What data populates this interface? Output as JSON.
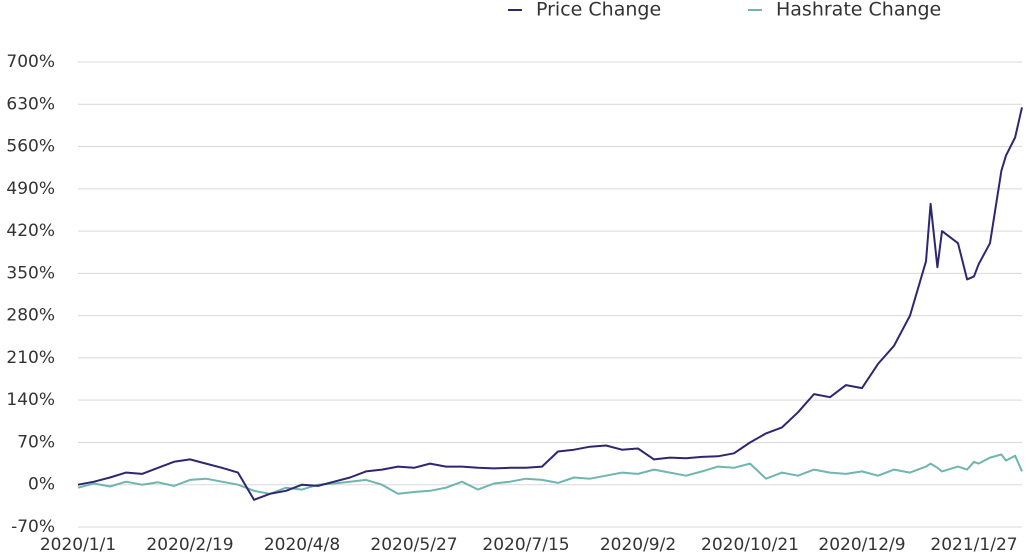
{
  "chart_data": {
    "type": "line",
    "x": [
      "2020/1/1",
      "2020/1/8",
      "2020/1/15",
      "2020/1/22",
      "2020/1/29",
      "2020/2/5",
      "2020/2/12",
      "2020/2/19",
      "2020/2/26",
      "2020/3/4",
      "2020/3/11",
      "2020/3/18",
      "2020/3/25",
      "2020/4/1",
      "2020/4/8",
      "2020/4/15",
      "2020/4/22",
      "2020/4/29",
      "2020/5/6",
      "2020/5/13",
      "2020/5/20",
      "2020/5/27",
      "2020/6/3",
      "2020/6/10",
      "2020/6/17",
      "2020/6/24",
      "2020/7/1",
      "2020/7/8",
      "2020/7/15",
      "2020/7/22",
      "2020/7/29",
      "2020/8/5",
      "2020/8/12",
      "2020/8/19",
      "2020/8/26",
      "2020/9/2",
      "2020/9/9",
      "2020/9/16",
      "2020/9/23",
      "2020/9/30",
      "2020/10/7",
      "2020/10/14",
      "2020/10/21",
      "2020/10/28",
      "2020/11/4",
      "2020/11/11",
      "2020/11/18",
      "2020/11/25",
      "2020/12/2",
      "2020/12/9",
      "2020/12/16",
      "2020/12/23",
      "2020/12/30",
      "2021/1/6",
      "2021/1/8",
      "2021/1/11",
      "2021/1/13",
      "2021/1/20",
      "2021/1/24",
      "2021/1/27",
      "2021/1/29",
      "2021/2/3",
      "2021/2/8",
      "2021/2/10",
      "2021/2/14",
      "2021/2/17"
    ],
    "series": [
      {
        "name": "Price Change",
        "color": "#2e2770",
        "values": [
          0,
          5,
          12,
          20,
          18,
          28,
          38,
          42,
          35,
          28,
          20,
          -25,
          -15,
          -10,
          0,
          -2,
          5,
          12,
          22,
          25,
          30,
          28,
          35,
          30,
          30,
          28,
          27,
          28,
          28,
          30,
          55,
          58,
          63,
          65,
          58,
          60,
          42,
          45,
          44,
          46,
          47,
          52,
          70,
          85,
          95,
          120,
          150,
          145,
          165,
          160,
          200,
          230,
          280,
          370,
          465,
          360,
          420,
          400,
          340,
          345,
          365,
          400,
          520,
          545,
          575,
          625
        ]
      },
      {
        "name": "Hashrate Change",
        "color": "#6fb5b0",
        "values": [
          -5,
          2,
          -3,
          5,
          0,
          4,
          -2,
          8,
          10,
          5,
          0,
          -10,
          -15,
          -5,
          -8,
          0,
          2,
          5,
          8,
          0,
          -15,
          -12,
          -10,
          -5,
          5,
          -8,
          2,
          5,
          10,
          8,
          3,
          12,
          10,
          15,
          20,
          18,
          25,
          20,
          15,
          22,
          30,
          28,
          35,
          10,
          20,
          15,
          25,
          20,
          18,
          22,
          15,
          25,
          20,
          30,
          35,
          28,
          22,
          30,
          25,
          38,
          35,
          45,
          50,
          40,
          48,
          22
        ]
      }
    ],
    "xlim": [
      "2020/1/1",
      "2021/2/17"
    ],
    "xticks": [
      "2020/1/1",
      "2020/2/19",
      "2020/4/8",
      "2020/5/27",
      "2020/7/15",
      "2020/9/2",
      "2020/10/21",
      "2020/12/9",
      "2021/1/27"
    ],
    "ylim": [
      -70,
      700
    ],
    "yticks": [
      {
        "value": -70,
        "label": "-70%"
      },
      {
        "value": 0,
        "label": "0%"
      },
      {
        "value": 70,
        "label": "70%"
      },
      {
        "value": 140,
        "label": "140%"
      },
      {
        "value": 210,
        "label": "210%"
      },
      {
        "value": 280,
        "label": "280%"
      },
      {
        "value": 350,
        "label": "350%"
      },
      {
        "value": 420,
        "label": "420%"
      },
      {
        "value": 490,
        "label": "490%"
      },
      {
        "value": 560,
        "label": "560%"
      },
      {
        "value": 630,
        "label": "630%"
      },
      {
        "value": 700,
        "label": "700%"
      }
    ],
    "grid": true,
    "legend": "top"
  }
}
